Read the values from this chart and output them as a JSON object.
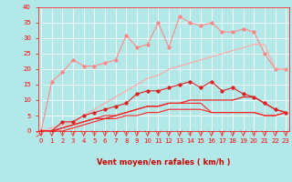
{
  "x": [
    0,
    1,
    2,
    3,
    4,
    5,
    6,
    7,
    8,
    9,
    10,
    11,
    12,
    13,
    14,
    15,
    16,
    17,
    18,
    19,
    20,
    21,
    22,
    23
  ],
  "series": [
    {
      "color": "#ff8888",
      "marker": "D",
      "markersize": 1.8,
      "linewidth": 0.8,
      "y": [
        0,
        16,
        19,
        23,
        21,
        21,
        22,
        23,
        31,
        27,
        28,
        35,
        27,
        37,
        35,
        34,
        35,
        32,
        32,
        33,
        32,
        25,
        20,
        20
      ]
    },
    {
      "color": "#ffaaaa",
      "marker": null,
      "markersize": 0,
      "linewidth": 0.9,
      "y": [
        0,
        1,
        2,
        3,
        5,
        7,
        9,
        11,
        13,
        15,
        17,
        18,
        20,
        21,
        22,
        23,
        24,
        25,
        26,
        27,
        28,
        28,
        20,
        20
      ]
    },
    {
      "color": "#dd2222",
      "marker": "D",
      "markersize": 1.8,
      "linewidth": 0.8,
      "y": [
        0,
        0,
        3,
        3,
        5,
        6,
        7,
        8,
        9,
        12,
        13,
        13,
        14,
        15,
        16,
        14,
        16,
        13,
        14,
        12,
        11,
        9,
        7,
        6
      ]
    },
    {
      "color": "#dd2222",
      "marker": null,
      "markersize": 0,
      "linewidth": 0.9,
      "y": [
        0,
        0,
        1,
        2,
        3,
        4,
        4,
        5,
        6,
        7,
        8,
        8,
        9,
        9,
        10,
        10,
        10,
        10,
        10,
        11,
        11,
        9,
        7,
        6
      ]
    },
    {
      "color": "#ff2222",
      "marker": null,
      "markersize": 0,
      "linewidth": 0.8,
      "y": [
        0,
        0,
        1,
        2,
        3,
        4,
        5,
        5,
        6,
        7,
        8,
        8,
        9,
        9,
        9,
        9,
        6,
        6,
        6,
        6,
        6,
        5,
        5,
        6
      ]
    },
    {
      "color": "#ff2222",
      "marker": null,
      "markersize": 0,
      "linewidth": 0.8,
      "y": [
        0,
        0,
        0,
        1,
        2,
        3,
        4,
        4,
        5,
        5,
        6,
        6,
        7,
        7,
        7,
        7,
        6,
        6,
        6,
        6,
        6,
        5,
        5,
        6
      ]
    }
  ],
  "xlabel": "Vent moyen/en rafales ( km/h )",
  "ylim": [
    0,
    40
  ],
  "xlim": [
    -0.3,
    23.3
  ],
  "yticks": [
    0,
    5,
    10,
    15,
    20,
    25,
    30,
    35,
    40
  ],
  "xticks": [
    0,
    1,
    2,
    3,
    4,
    5,
    6,
    7,
    8,
    9,
    10,
    11,
    12,
    13,
    14,
    15,
    16,
    17,
    18,
    19,
    20,
    21,
    22,
    23
  ],
  "bg_color": "#b3e8e8",
  "grid_color": "#ffffff",
  "tick_color": "#ff0000",
  "label_color": "#cc0000",
  "arrow_color": "#ff2222"
}
